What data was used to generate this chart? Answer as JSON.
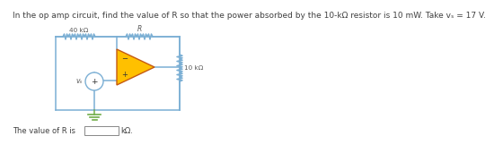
{
  "title_text": "In the op amp circuit, find the value of R so that the power absorbed by the 10-kΩ resistor is 10 mW. Take vₛ = 17 V.",
  "title_fontsize": 6.5,
  "bg_color": "#ffffff",
  "circuit": {
    "r40_label": "40 kΩ",
    "r_label": "R",
    "r10_label": "10 kΩ",
    "vs_label": "vₛ",
    "answer_label": "The value of R is",
    "answer_unit": "kΩ.",
    "wire_color": "#7bafd4",
    "opamp_triangle_fill": "#ffc000",
    "opamp_triangle_edge": "#c55a11",
    "vs_circle_fill": "#ffffff",
    "vs_circle_edge": "#7bafd4",
    "gnd_color": "#70ad47",
    "text_color": "#404040",
    "label_color": "#595959"
  }
}
